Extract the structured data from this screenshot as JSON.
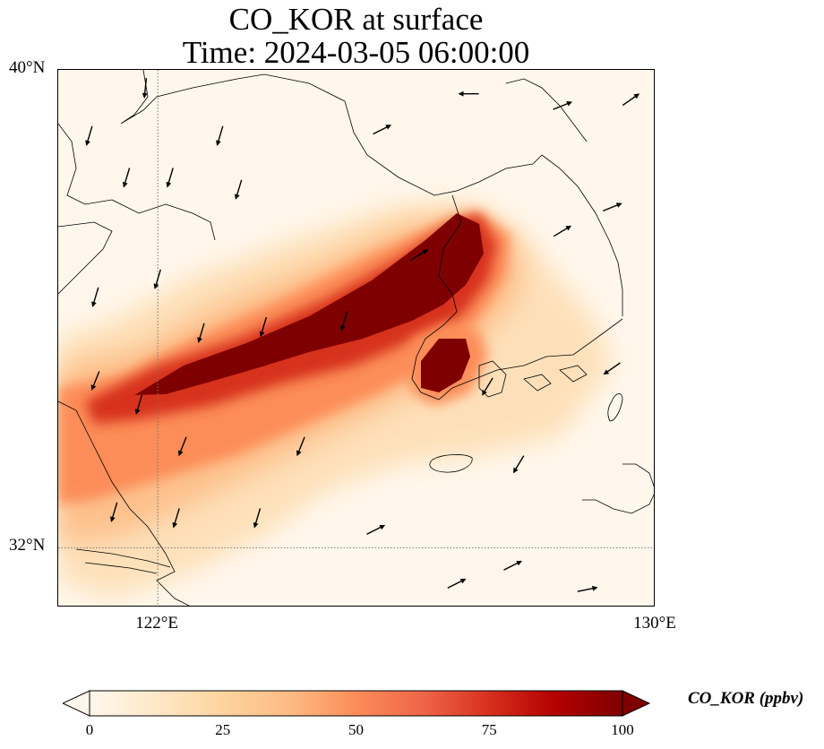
{
  "title": {
    "line1": "CO_KOR at surface",
    "line2": "Time: 2024-03-05 06:00:00"
  },
  "map": {
    "lon_range": [
      120.4,
      130.0
    ],
    "lat_range": [
      31.0,
      40.0
    ],
    "lat_ticks": [
      {
        "value": 40,
        "label": "40°N"
      },
      {
        "value": 32,
        "label": "32°N"
      }
    ],
    "lon_ticks": [
      {
        "value": 122,
        "label": "122°E"
      },
      {
        "value": 130,
        "label": "130°E"
      }
    ],
    "gridlines": true,
    "gridline_style": "dotted",
    "coastlines": true
  },
  "colorbar": {
    "label": "CO_KOR (ppbv)",
    "colormap": "OrRd",
    "min": 0,
    "max": 100,
    "extend": "both",
    "ticks": [
      "0",
      "25",
      "50",
      "75",
      "100"
    ],
    "colors": [
      "#fff7ec",
      "#fee8c8",
      "#fdd49e",
      "#fdbb84",
      "#fc8d59",
      "#ef6548",
      "#d7301f",
      "#b30000",
      "#7f0000"
    ]
  },
  "chart_data": {
    "type": "heatmap",
    "variable": "CO_KOR",
    "level": "surface",
    "time": "2024-03-05 06:00:00",
    "units": "ppbv",
    "plume_axis": [
      {
        "lon": 120.9,
        "lat": 34.3,
        "value": 50
      },
      {
        "lon": 121.4,
        "lat": 34.6,
        "value": 70
      },
      {
        "lon": 122.1,
        "lat": 34.9,
        "value": 100
      },
      {
        "lon": 123.0,
        "lat": 35.4,
        "value": 100
      },
      {
        "lon": 124.1,
        "lat": 36.0,
        "value": 100
      },
      {
        "lon": 125.0,
        "lat": 36.8,
        "value": 100
      },
      {
        "lon": 125.7,
        "lat": 37.4,
        "value": 100
      }
    ],
    "secondary_core": {
      "lon": 126.3,
      "lat": 35.2,
      "value": 100
    },
    "wind_vectors": [
      {
        "lon": 121.8,
        "lat": 39.7,
        "u": -0.1,
        "v": -1
      },
      {
        "lon": 120.9,
        "lat": 38.9,
        "u": -0.3,
        "v": -1
      },
      {
        "lon": 121.5,
        "lat": 38.2,
        "u": -0.3,
        "v": -1
      },
      {
        "lon": 122.2,
        "lat": 38.2,
        "u": -0.3,
        "v": -1
      },
      {
        "lon": 123.0,
        "lat": 38.9,
        "u": -0.3,
        "v": -1
      },
      {
        "lon": 123.3,
        "lat": 38.0,
        "u": -0.3,
        "v": -1
      },
      {
        "lon": 121.0,
        "lat": 36.2,
        "u": -0.3,
        "v": -1
      },
      {
        "lon": 122.7,
        "lat": 35.6,
        "u": -0.3,
        "v": -1
      },
      {
        "lon": 122.0,
        "lat": 36.5,
        "u": -0.3,
        "v": -1
      },
      {
        "lon": 123.7,
        "lat": 35.7,
        "u": -0.3,
        "v": -1
      },
      {
        "lon": 121.0,
        "lat": 34.8,
        "u": -0.4,
        "v": -1
      },
      {
        "lon": 121.7,
        "lat": 34.4,
        "u": -0.3,
        "v": -1
      },
      {
        "lon": 122.4,
        "lat": 33.7,
        "u": -0.4,
        "v": -1
      },
      {
        "lon": 121.3,
        "lat": 32.6,
        "u": -0.3,
        "v": -1
      },
      {
        "lon": 122.3,
        "lat": 32.5,
        "u": -0.3,
        "v": -1
      },
      {
        "lon": 123.6,
        "lat": 32.5,
        "u": -0.3,
        "v": -1
      },
      {
        "lon": 124.3,
        "lat": 33.7,
        "u": -0.4,
        "v": -1
      },
      {
        "lon": 125.0,
        "lat": 35.8,
        "u": -0.3,
        "v": -1
      },
      {
        "lon": 127.3,
        "lat": 34.7,
        "u": -0.6,
        "v": -1
      },
      {
        "lon": 127.8,
        "lat": 33.4,
        "u": -0.6,
        "v": -1
      },
      {
        "lon": 129.3,
        "lat": 35.0,
        "u": -1,
        "v": -0.7
      },
      {
        "lon": 129.3,
        "lat": 37.7,
        "u": 1,
        "v": 0.4
      },
      {
        "lon": 129.6,
        "lat": 39.5,
        "u": 1,
        "v": 0.7
      },
      {
        "lon": 128.5,
        "lat": 39.4,
        "u": 1,
        "v": 0.4
      },
      {
        "lon": 127.0,
        "lat": 39.6,
        "u": -1,
        "v": 0
      },
      {
        "lon": 125.6,
        "lat": 39.0,
        "u": 1,
        "v": 0.5
      },
      {
        "lon": 126.2,
        "lat": 36.9,
        "u": 1,
        "v": 0.6
      },
      {
        "lon": 128.5,
        "lat": 37.3,
        "u": 1,
        "v": 0.6
      },
      {
        "lon": 125.5,
        "lat": 32.3,
        "u": 1,
        "v": 0.5
      },
      {
        "lon": 126.8,
        "lat": 31.4,
        "u": 1,
        "v": 0.5
      },
      {
        "lon": 127.7,
        "lat": 31.7,
        "u": 1,
        "v": 0.5
      },
      {
        "lon": 128.9,
        "lat": 31.3,
        "u": 1,
        "v": 0.2
      }
    ]
  }
}
